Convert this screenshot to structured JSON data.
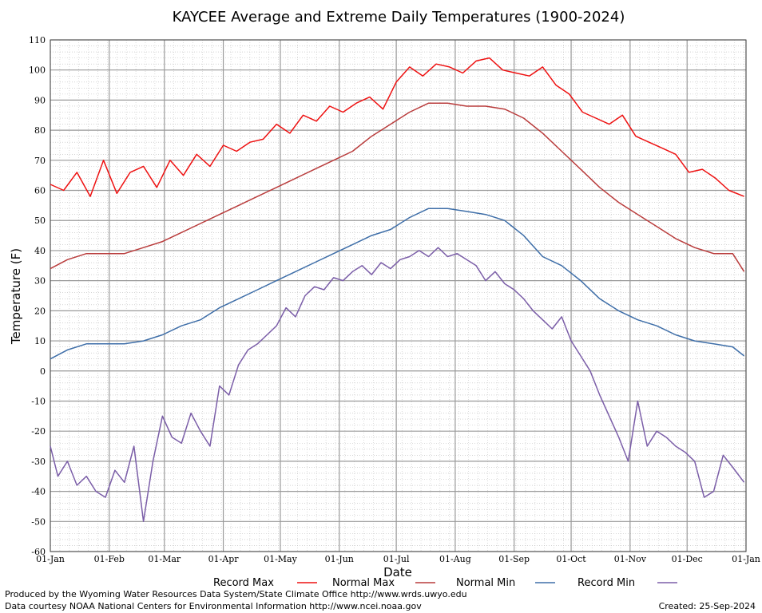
{
  "chart_data": {
    "type": "line",
    "title": "KAYCEE Average and Extreme Daily Temperatures (1900-2024)",
    "xlabel": "Date",
    "ylabel": "Temperature (F)",
    "ylim": [
      -60,
      110
    ],
    "yticks": [
      -60,
      -50,
      -40,
      -30,
      -20,
      -10,
      0,
      10,
      20,
      30,
      40,
      50,
      60,
      70,
      80,
      90,
      100,
      110
    ],
    "xtick_labels": [
      "01-Jan",
      "01-Feb",
      "01-Mar",
      "01-Apr",
      "01-May",
      "01-Jun",
      "01-Jul",
      "01-Aug",
      "01-Sep",
      "01-Oct",
      "01-Nov",
      "01-Dec",
      "01-Jan"
    ],
    "xtick_days": [
      1,
      32,
      61,
      92,
      122,
      153,
      183,
      214,
      245,
      275,
      306,
      336,
      367
    ],
    "x_range_days": [
      1,
      367
    ],
    "grid": true,
    "legend_position": "bottom",
    "series": [
      {
        "name": "Record Max",
        "color": "#ee1111",
        "x": [
          1,
          8,
          15,
          22,
          29,
          36,
          43,
          50,
          57,
          64,
          71,
          78,
          85,
          92,
          99,
          106,
          113,
          120,
          127,
          134,
          141,
          148,
          155,
          162,
          169,
          176,
          183,
          190,
          197,
          204,
          211,
          218,
          225,
          232,
          239,
          246,
          253,
          260,
          267,
          274,
          281,
          288,
          295,
          302,
          309,
          316,
          323,
          330,
          337,
          344,
          351,
          358,
          366
        ],
        "y": [
          62,
          60,
          66,
          58,
          70,
          59,
          66,
          68,
          61,
          70,
          65,
          72,
          68,
          75,
          73,
          76,
          77,
          82,
          79,
          85,
          83,
          88,
          86,
          89,
          91,
          87,
          96,
          101,
          98,
          102,
          101,
          99,
          103,
          104,
          100,
          99,
          98,
          101,
          95,
          92,
          86,
          84,
          82,
          85,
          78,
          76,
          74,
          72,
          66,
          67,
          64,
          60,
          58
        ]
      },
      {
        "name": "Normal Max",
        "color": "#b93c3c",
        "x": [
          1,
          10,
          20,
          30,
          40,
          50,
          60,
          70,
          80,
          90,
          100,
          110,
          120,
          130,
          140,
          150,
          160,
          170,
          180,
          190,
          200,
          210,
          220,
          230,
          240,
          250,
          260,
          270,
          280,
          290,
          300,
          310,
          320,
          330,
          340,
          350,
          360,
          366
        ],
        "y": [
          34,
          37,
          39,
          39,
          39,
          41,
          43,
          46,
          49,
          52,
          55,
          58,
          61,
          64,
          67,
          70,
          73,
          78,
          82,
          86,
          89,
          89,
          88,
          88,
          87,
          84,
          79,
          73,
          67,
          61,
          56,
          52,
          48,
          44,
          41,
          39,
          39,
          33
        ]
      },
      {
        "name": "Normal Min",
        "color": "#3e6ea8",
        "x": [
          1,
          10,
          20,
          30,
          40,
          50,
          60,
          70,
          80,
          90,
          100,
          110,
          120,
          130,
          140,
          150,
          160,
          170,
          180,
          190,
          200,
          210,
          220,
          230,
          240,
          250,
          260,
          270,
          280,
          290,
          300,
          310,
          320,
          330,
          340,
          350,
          360,
          366
        ],
        "y": [
          4,
          7,
          9,
          9,
          9,
          10,
          12,
          15,
          17,
          21,
          24,
          27,
          30,
          33,
          36,
          39,
          42,
          45,
          47,
          51,
          54,
          54,
          53,
          52,
          50,
          45,
          38,
          35,
          30,
          24,
          20,
          17,
          15,
          12,
          10,
          9,
          8,
          5
        ]
      },
      {
        "name": "Record Min",
        "color": "#7b5ea8",
        "x": [
          1,
          5,
          10,
          15,
          20,
          25,
          30,
          35,
          40,
          45,
          50,
          55,
          60,
          65,
          70,
          75,
          80,
          85,
          90,
          95,
          100,
          105,
          110,
          115,
          120,
          125,
          130,
          135,
          140,
          145,
          150,
          155,
          160,
          165,
          170,
          175,
          180,
          185,
          190,
          195,
          200,
          205,
          210,
          215,
          220,
          225,
          230,
          235,
          240,
          245,
          250,
          255,
          260,
          265,
          270,
          275,
          280,
          285,
          290,
          295,
          300,
          305,
          310,
          315,
          320,
          325,
          330,
          335,
          340,
          345,
          350,
          355,
          360,
          366
        ],
        "y": [
          -25,
          -35,
          -30,
          -38,
          -35,
          -40,
          -42,
          -33,
          -37,
          -25,
          -50,
          -30,
          -15,
          -22,
          -24,
          -14,
          -20,
          -25,
          -5,
          -8,
          2,
          7,
          9,
          12,
          15,
          21,
          18,
          25,
          28,
          27,
          31,
          30,
          33,
          35,
          32,
          36,
          34,
          37,
          38,
          40,
          38,
          41,
          38,
          39,
          37,
          35,
          30,
          33,
          29,
          27,
          24,
          20,
          17,
          14,
          18,
          10,
          5,
          0,
          -8,
          -15,
          -22,
          -30,
          -10,
          -25,
          -20,
          -22,
          -25,
          -27,
          -30,
          -42,
          -40,
          -28,
          -32,
          -37
        ]
      }
    ]
  },
  "legend": {
    "items": [
      {
        "label": "Record Max",
        "color": "#ee1111"
      },
      {
        "label": "Normal Max",
        "color": "#b93c3c"
      },
      {
        "label": "Normal Min",
        "color": "#3e6ea8"
      },
      {
        "label": "Record Min",
        "color": "#7b5ea8"
      }
    ]
  },
  "footer": {
    "produced_by": "Produced by the Wyoming Water Resources Data System/State Climate Office http://www.wrds.uwyo.edu",
    "courtesy": "Data courtesy NOAA National Centers for Environmental Information http://www.ncei.noaa.gov",
    "created": "Created: 25-Sep-2024"
  }
}
